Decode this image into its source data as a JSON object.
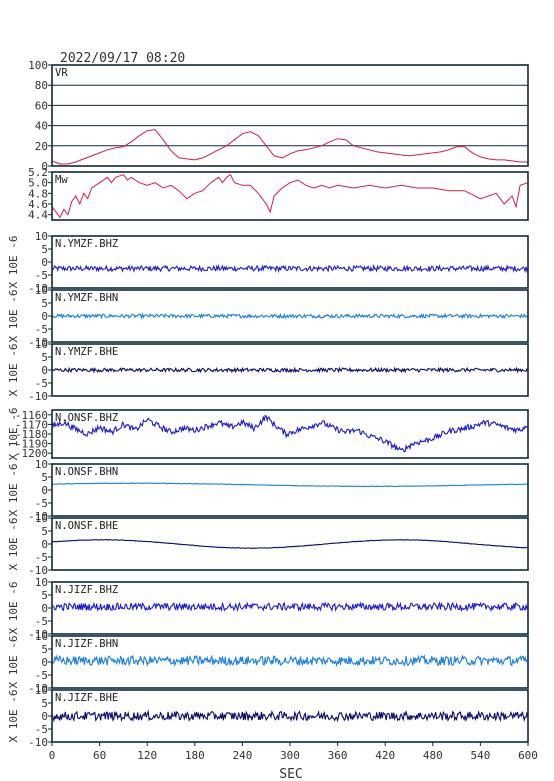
{
  "header": {
    "timestamp": "2022/09/17 08:20"
  },
  "colors": {
    "frame": "#0e2a3a",
    "vr_mw": "#d81b4a",
    "bhz": "#1a1ad8",
    "bhn": "#1a7fe0",
    "bhe": "#0a0a6e"
  },
  "chart_data": {
    "type": "line",
    "xlabel": "SEC",
    "xlim": [
      0,
      600
    ],
    "xticks": [
      "0",
      "60",
      "120",
      "180",
      "240",
      "300",
      "360",
      "420",
      "480",
      "540",
      "600"
    ],
    "ylabel_wave": "X 10E -6",
    "panels": [
      {
        "id": "vr",
        "label": "VR",
        "color_key": "vr_mw",
        "ylim": [
          0,
          100
        ],
        "yticks": [
          "0",
          "20",
          "40",
          "60",
          "80",
          "100"
        ],
        "grid": true,
        "series": {
          "name": "VR",
          "points": [
            [
              0,
              5
            ],
            [
              10,
              2
            ],
            [
              20,
              2
            ],
            [
              30,
              4
            ],
            [
              40,
              7
            ],
            [
              50,
              10
            ],
            [
              60,
              13
            ],
            [
              70,
              16
            ],
            [
              80,
              18
            ],
            [
              90,
              19
            ],
            [
              100,
              24
            ],
            [
              110,
              30
            ],
            [
              120,
              35
            ],
            [
              130,
              36
            ],
            [
              140,
              26
            ],
            [
              150,
              15
            ],
            [
              160,
              8
            ],
            [
              170,
              7
            ],
            [
              180,
              6
            ],
            [
              190,
              8
            ],
            [
              200,
              12
            ],
            [
              210,
              16
            ],
            [
              220,
              20
            ],
            [
              230,
              26
            ],
            [
              240,
              32
            ],
            [
              250,
              34
            ],
            [
              260,
              30
            ],
            [
              270,
              20
            ],
            [
              280,
              10
            ],
            [
              290,
              8
            ],
            [
              300,
              12
            ],
            [
              310,
              15
            ],
            [
              320,
              16
            ],
            [
              330,
              18
            ],
            [
              340,
              20
            ],
            [
              350,
              24
            ],
            [
              360,
              27
            ],
            [
              370,
              26
            ],
            [
              380,
              20
            ],
            [
              390,
              18
            ],
            [
              400,
              16
            ],
            [
              410,
              14
            ],
            [
              420,
              13
            ],
            [
              430,
              12
            ],
            [
              440,
              11
            ],
            [
              450,
              10
            ],
            [
              460,
              11
            ],
            [
              470,
              12
            ],
            [
              480,
              13
            ],
            [
              490,
              14
            ],
            [
              500,
              16
            ],
            [
              510,
              19
            ],
            [
              520,
              19
            ],
            [
              530,
              13
            ],
            [
              540,
              9
            ],
            [
              550,
              7
            ],
            [
              560,
              6
            ],
            [
              570,
              6
            ],
            [
              580,
              5
            ],
            [
              590,
              4
            ],
            [
              600,
              4
            ]
          ]
        }
      },
      {
        "id": "mw",
        "label": "Mw",
        "color_key": "vr_mw",
        "ylim": [
          4.3,
          5.2
        ],
        "yticks": [
          "4.4",
          "4.6",
          "4.8",
          "5.0",
          "5.2"
        ],
        "grid": false,
        "series": {
          "name": "Mw",
          "points": [
            [
              0,
              4.55
            ],
            [
              5,
              4.45
            ],
            [
              10,
              4.35
            ],
            [
              15,
              4.5
            ],
            [
              20,
              4.4
            ],
            [
              25,
              4.65
            ],
            [
              30,
              4.75
            ],
            [
              35,
              4.6
            ],
            [
              40,
              4.8
            ],
            [
              45,
              4.7
            ],
            [
              50,
              4.9
            ],
            [
              60,
              5.0
            ],
            [
              70,
              5.1
            ],
            [
              75,
              5.0
            ],
            [
              80,
              5.1
            ],
            [
              90,
              5.15
            ],
            [
              95,
              5.05
            ],
            [
              100,
              5.1
            ],
            [
              110,
              5.0
            ],
            [
              120,
              4.95
            ],
            [
              130,
              5.0
            ],
            [
              140,
              4.9
            ],
            [
              150,
              4.95
            ],
            [
              160,
              4.85
            ],
            [
              170,
              4.7
            ],
            [
              180,
              4.8
            ],
            [
              190,
              4.85
            ],
            [
              200,
              5.0
            ],
            [
              210,
              5.1
            ],
            [
              215,
              5.0
            ],
            [
              220,
              5.1
            ],
            [
              225,
              5.15
            ],
            [
              230,
              5.0
            ],
            [
              240,
              4.95
            ],
            [
              250,
              4.95
            ],
            [
              260,
              4.8
            ],
            [
              270,
              4.6
            ],
            [
              275,
              4.45
            ],
            [
              280,
              4.75
            ],
            [
              290,
              4.9
            ],
            [
              300,
              5.0
            ],
            [
              310,
              5.05
            ],
            [
              320,
              4.95
            ],
            [
              330,
              4.9
            ],
            [
              340,
              4.95
            ],
            [
              350,
              4.9
            ],
            [
              360,
              4.95
            ],
            [
              380,
              4.9
            ],
            [
              400,
              4.95
            ],
            [
              420,
              4.9
            ],
            [
              440,
              4.95
            ],
            [
              460,
              4.9
            ],
            [
              480,
              4.9
            ],
            [
              500,
              4.85
            ],
            [
              520,
              4.85
            ],
            [
              540,
              4.7
            ],
            [
              560,
              4.8
            ],
            [
              570,
              4.6
            ],
            [
              580,
              4.75
            ],
            [
              585,
              4.55
            ],
            [
              590,
              4.95
            ],
            [
              600,
              5.0
            ]
          ]
        }
      },
      {
        "id": "ymzf_bhz",
        "label": "N.YMZF.BHZ",
        "color_key": "bhz",
        "ylim": [
          -10,
          10
        ],
        "yticks": [
          "-10",
          "-5",
          "0",
          "5",
          "10"
        ],
        "grid": false,
        "series": {
          "name": "N.YMZF.BHZ",
          "base": -2.5,
          "noise": 1.0,
          "freq": 0,
          "amp": 0
        }
      },
      {
        "id": "ymzf_bhn",
        "label": "N.YMZF.BHN",
        "color_key": "bhn",
        "ylim": [
          -10,
          10
        ],
        "yticks": [
          "-10",
          "-5",
          "0",
          "5",
          "10"
        ],
        "grid": false,
        "series": {
          "name": "N.YMZF.BHN",
          "base": 0,
          "noise": 0.7,
          "freq": 0,
          "amp": 0
        }
      },
      {
        "id": "ymzf_bhe",
        "label": "N.YMZF.BHE",
        "color_key": "bhe",
        "ylim": [
          -10,
          10
        ],
        "yticks": [
          "-10",
          "-5",
          "0",
          "5",
          "10"
        ],
        "grid": false,
        "series": {
          "name": "N.YMZF.BHE",
          "base": 0,
          "noise": 0.7,
          "freq": 0,
          "amp": 0
        }
      },
      {
        "id": "onsf_bhz",
        "label": "N.ONSF.BHZ",
        "color_key": "bhz",
        "ylim": [
          -1205,
          -1155
        ],
        "yticks": [
          "-1200",
          "-1190",
          "-1180",
          "-1170",
          "-1160"
        ],
        "grid": false,
        "series": {
          "name": "N.ONSF.BHZ",
          "noise": 3,
          "points": [
            [
              0,
              -1172
            ],
            [
              15,
              -1168
            ],
            [
              30,
              -1175
            ],
            [
              45,
              -1180
            ],
            [
              60,
              -1173
            ],
            [
              75,
              -1178
            ],
            [
              90,
              -1170
            ],
            [
              105,
              -1176
            ],
            [
              120,
              -1165
            ],
            [
              135,
              -1172
            ],
            [
              150,
              -1178
            ],
            [
              165,
              -1174
            ],
            [
              180,
              -1176
            ],
            [
              195,
              -1172
            ],
            [
              210,
              -1168
            ],
            [
              225,
              -1173
            ],
            [
              240,
              -1168
            ],
            [
              255,
              -1174
            ],
            [
              270,
              -1162
            ],
            [
              280,
              -1170
            ],
            [
              295,
              -1180
            ],
            [
              310,
              -1176
            ],
            [
              325,
              -1172
            ],
            [
              340,
              -1168
            ],
            [
              355,
              -1174
            ],
            [
              370,
              -1178
            ],
            [
              385,
              -1176
            ],
            [
              400,
              -1182
            ],
            [
              415,
              -1186
            ],
            [
              430,
              -1192
            ],
            [
              440,
              -1198
            ],
            [
              455,
              -1190
            ],
            [
              470,
              -1187
            ],
            [
              485,
              -1183
            ],
            [
              500,
              -1177
            ],
            [
              515,
              -1175
            ],
            [
              530,
              -1172
            ],
            [
              545,
              -1168
            ],
            [
              560,
              -1170
            ],
            [
              575,
              -1174
            ],
            [
              590,
              -1176
            ],
            [
              600,
              -1170
            ]
          ]
        }
      },
      {
        "id": "onsf_bhn",
        "label": "N.ONSF.BHN",
        "color_key": "bhn",
        "ylim": [
          -10,
          10
        ],
        "yticks": [
          "-10",
          "-5",
          "0",
          "5",
          "10"
        ],
        "grid": false,
        "series": {
          "name": "N.ONSF.BHN",
          "base": 2,
          "noise": 0.1,
          "freq": 1,
          "amp": 0.6
        }
      },
      {
        "id": "onsf_bhe",
        "label": "N.ONSF.BHE",
        "color_key": "bhe",
        "ylim": [
          -10,
          10
        ],
        "yticks": [
          "-10",
          "-5",
          "0",
          "5",
          "10"
        ],
        "grid": false,
        "series": {
          "name": "N.ONSF.BHE",
          "base": 0,
          "noise": 0.1,
          "freq": 1.6,
          "amp": 1.6
        }
      },
      {
        "id": "jizf_bhz",
        "label": "N.JIZF.BHZ",
        "color_key": "bhz",
        "ylim": [
          -10,
          10
        ],
        "yticks": [
          "-10",
          "-5",
          "0",
          "5",
          "10"
        ],
        "grid": false,
        "series": {
          "name": "N.JIZF.BHZ",
          "base": 0.5,
          "noise": 1.4,
          "freq": 0,
          "amp": 0
        }
      },
      {
        "id": "jizf_bhn",
        "label": "N.JIZF.BHN",
        "color_key": "bhn",
        "ylim": [
          -10,
          10
        ],
        "yticks": [
          "-10",
          "-5",
          "0",
          "5",
          "10"
        ],
        "grid": false,
        "series": {
          "name": "N.JIZF.BHN",
          "base": 0.5,
          "noise": 1.8,
          "freq": 0,
          "amp": 0
        }
      },
      {
        "id": "jizf_bhe",
        "label": "N.JIZF.BHE",
        "color_key": "bhe",
        "ylim": [
          -10,
          10
        ],
        "yticks": [
          "-10",
          "-5",
          "0",
          "5",
          "10"
        ],
        "grid": false,
        "series": {
          "name": "N.JIZF.BHE",
          "base": 0,
          "noise": 1.7,
          "freq": 0,
          "amp": 0
        }
      }
    ]
  }
}
